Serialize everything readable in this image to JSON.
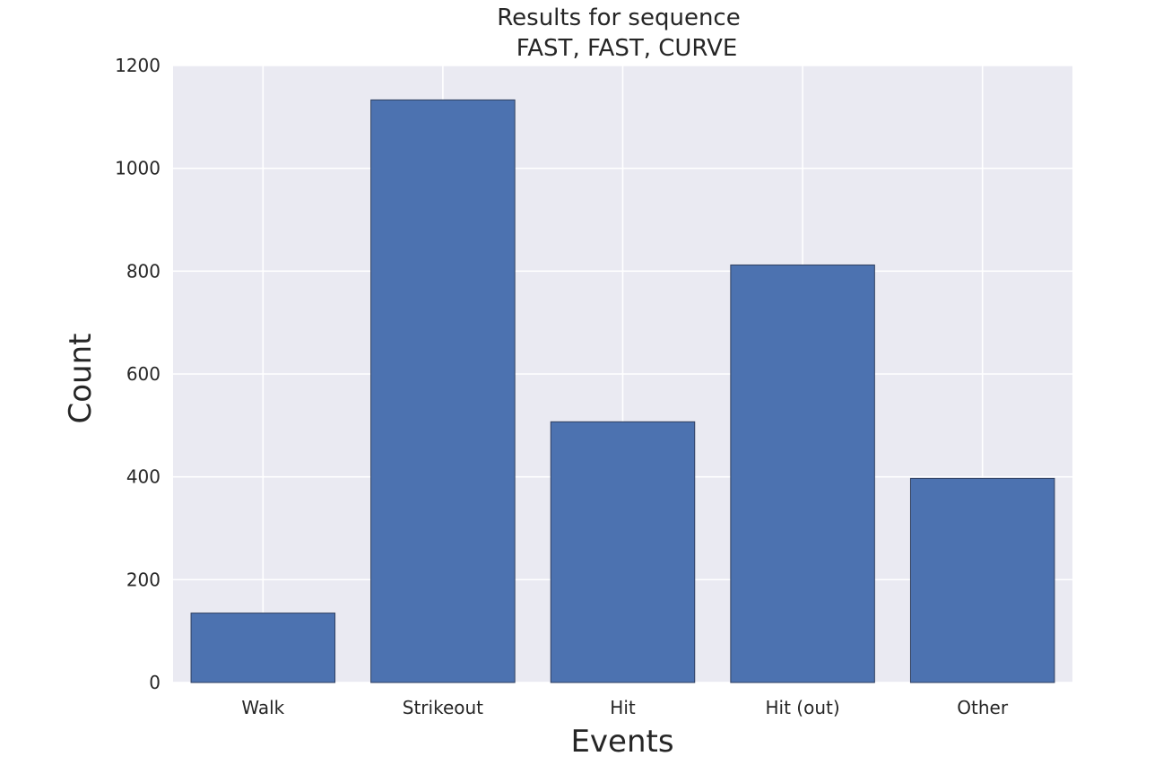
{
  "chart_data": {
    "type": "bar",
    "title_lines": [
      "Results for sequence",
      "FAST, FAST, CURVE"
    ],
    "xlabel": "Events",
    "ylabel": "Count",
    "categories": [
      "Walk",
      "Strikeout",
      "Hit",
      "Hit (out)",
      "Other"
    ],
    "values": [
      135,
      1133,
      507,
      812,
      397
    ],
    "ylim": [
      0,
      1200
    ],
    "yticks": [
      0,
      200,
      400,
      600,
      800,
      1000,
      1200
    ],
    "grid": true,
    "colors": {
      "bar": "#4c72b0",
      "bar_edge": "#2f3f5f",
      "plot_background": "#eaeaf2",
      "grid": "#ffffff"
    }
  }
}
